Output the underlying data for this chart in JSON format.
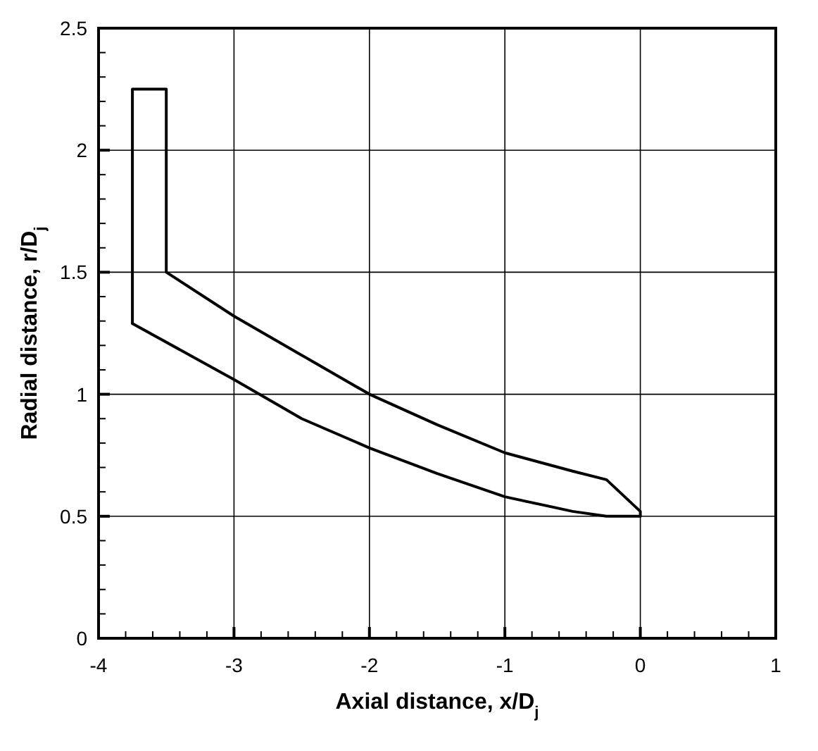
{
  "chart_data": {
    "type": "line",
    "xlabel": "Axial distance, x/D$_{j}$",
    "ylabel": "Radial distance, r/D$_{j}$",
    "series": [
      {
        "color": "#000000",
        "x": [
          -3.75,
          -3.75,
          -3.5,
          -3.5,
          -3,
          -2.5,
          -2,
          -1.5,
          -1,
          -0.5,
          -0.25,
          0,
          0
        ],
        "values": [
          1.29,
          2.25,
          2.25,
          1.5,
          1.32,
          1.16,
          1.0,
          0.875,
          0.76,
          0.685,
          0.65,
          0.52,
          0.5
        ]
      },
      {
        "color": "#000000",
        "x": [
          -3.75,
          -3,
          -2.5,
          -2,
          -1.5,
          -1,
          -0.5,
          -0.25,
          0
        ],
        "values": [
          1.29,
          1.06,
          0.9,
          0.78,
          0.675,
          0.58,
          0.52,
          0.5,
          0.5
        ]
      }
    ],
    "xlim": [
      -4,
      1
    ],
    "ylim": [
      0,
      2.5
    ],
    "xticks": [
      -4,
      {
        "value": -3.8,
        "label": null
      },
      {
        "value": -3.6,
        "label": null
      },
      {
        "value": -3.4,
        "label": null
      },
      {
        "value": -3.2,
        "label": null
      },
      -3,
      {
        "value": -2.8,
        "label": null
      },
      {
        "value": -2.6,
        "label": null
      },
      {
        "value": -2.4,
        "label": null
      },
      {
        "value": -2.2,
        "label": null
      },
      -2,
      {
        "value": -1.8,
        "label": null
      },
      {
        "value": -1.6,
        "label": null
      },
      {
        "value": -1.4,
        "label": null
      },
      {
        "value": -1.2,
        "label": null
      },
      -1,
      {
        "value": -0.8,
        "label": null
      },
      {
        "value": -0.6,
        "label": null
      },
      {
        "value": -0.4,
        "label": null
      },
      {
        "value": -0.2,
        "label": null
      },
      0,
      {
        "value": 0.2,
        "label": null
      },
      {
        "value": 0.4,
        "label": null
      },
      {
        "value": 0.6,
        "label": null
      },
      {
        "value": 0.8,
        "label": null
      },
      1
    ],
    "yticks": [
      0,
      {
        "value": 0.1,
        "label": null
      },
      {
        "value": 0.2,
        "label": null
      },
      {
        "value": 0.3,
        "label": null
      },
      {
        "value": 0.4,
        "label": null
      },
      0.5,
      {
        "value": 0.6,
        "label": null
      },
      {
        "value": 0.7,
        "label": null
      },
      {
        "value": 0.8,
        "label": null
      },
      {
        "value": 0.9,
        "label": null
      },
      1,
      {
        "value": 1.1,
        "label": null
      },
      {
        "value": 1.2,
        "label": null
      },
      {
        "value": 1.3,
        "label": null
      },
      {
        "value": 1.4,
        "label": null
      },
      1.5,
      {
        "value": 1.6,
        "label": null
      },
      {
        "value": 1.7,
        "label": null
      },
      {
        "value": 1.8,
        "label": null
      },
      {
        "value": 1.9,
        "label": null
      },
      2,
      {
        "value": 2.1,
        "label": null
      },
      {
        "value": 2.2,
        "label": null
      },
      {
        "value": 2.3,
        "label": null
      },
      {
        "value": 2.4,
        "label": null
      },
      2.5
    ],
    "grid": true,
    "marker": "none",
    "line_style": "solid"
  }
}
